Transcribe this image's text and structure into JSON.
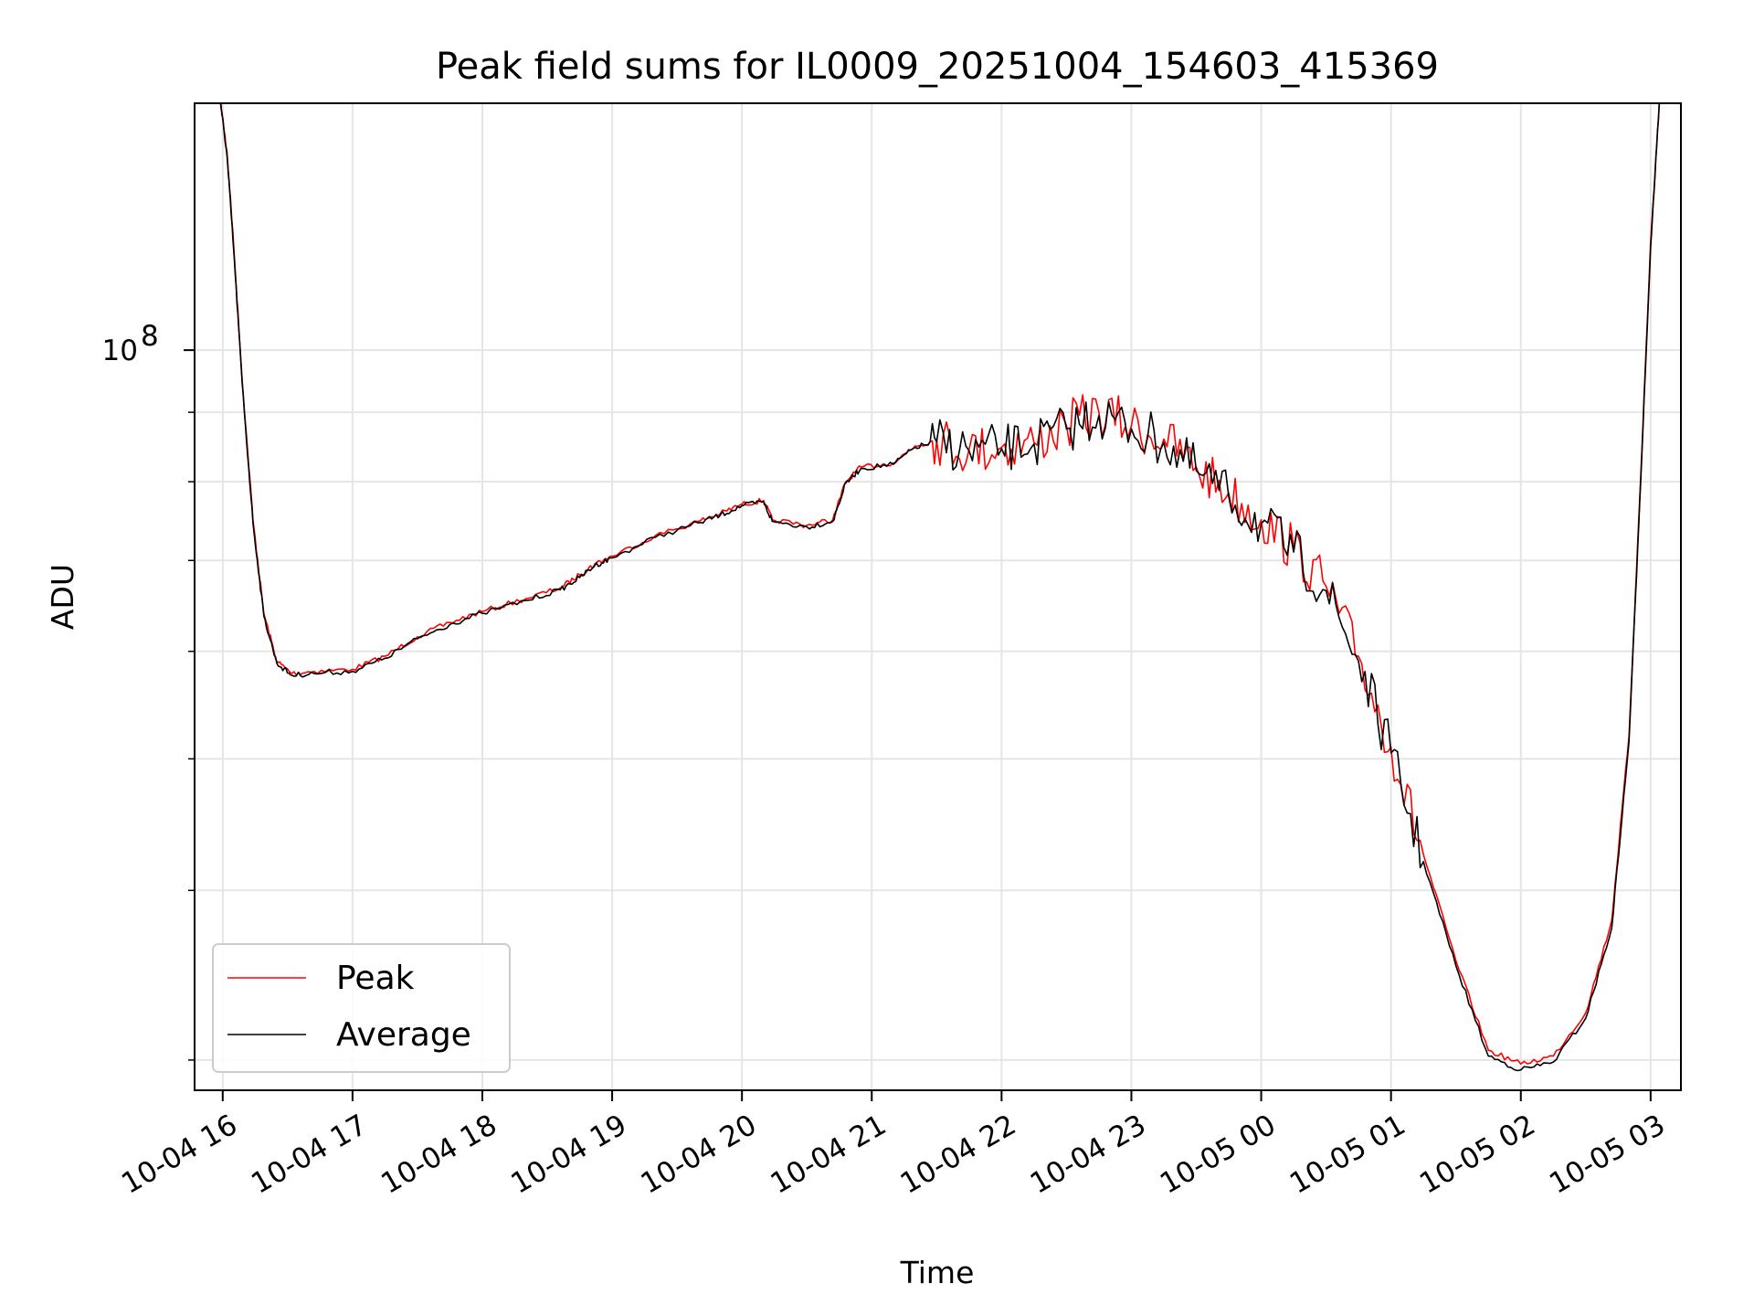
{
  "chart_data": {
    "type": "line",
    "title": "Peak field sums for IL0009_20251004_154603_415369",
    "xlabel": "Time",
    "ylabel": "ADU",
    "yscale": "log",
    "ylim": [
      28500000,
      152000000
    ],
    "xlim": [
      "2025-10-04 15:47",
      "2025-10-05 03:14"
    ],
    "grid": true,
    "legend_position": "lower-left",
    "x_ticks": [
      {
        "t": "2025-10-04 16:00",
        "label": "10-04 16"
      },
      {
        "t": "2025-10-04 17:00",
        "label": "10-04 17"
      },
      {
        "t": "2025-10-04 18:00",
        "label": "10-04 18"
      },
      {
        "t": "2025-10-04 19:00",
        "label": "10-04 19"
      },
      {
        "t": "2025-10-04 20:00",
        "label": "10-04 20"
      },
      {
        "t": "2025-10-04 21:00",
        "label": "10-04 21"
      },
      {
        "t": "2025-10-04 22:00",
        "label": "10-04 22"
      },
      {
        "t": "2025-10-04 23:00",
        "label": "10-04 23"
      },
      {
        "t": "2025-10-05 00:00",
        "label": "10-05 00"
      },
      {
        "t": "2025-10-05 01:00",
        "label": "10-05 01"
      },
      {
        "t": "2025-10-05 02:00",
        "label": "10-05 02"
      },
      {
        "t": "2025-10-05 03:00",
        "label": "10-05 03"
      }
    ],
    "y_major_ticks": [
      {
        "value": 100000000,
        "label": "10",
        "exponent": "8"
      }
    ],
    "y_minor_ticks": [
      30000000,
      40000000,
      50000000,
      60000000,
      70000000,
      80000000,
      90000000,
      200000000
    ],
    "series": [
      {
        "name": "Peak",
        "color": "#ff0000",
        "points": [
          [
            "2025-10-04 15:59",
            152000000
          ],
          [
            "2025-10-04 16:02",
            140000000
          ],
          [
            "2025-10-04 16:05",
            120000000
          ],
          [
            "2025-10-04 16:09",
            95000000
          ],
          [
            "2025-10-04 16:14",
            75000000
          ],
          [
            "2025-10-04 16:19",
            64000000
          ],
          [
            "2025-10-04 16:25",
            59000000
          ],
          [
            "2025-10-04 16:32",
            57800000
          ],
          [
            "2025-10-04 16:42",
            58000000
          ],
          [
            "2025-10-04 17:00",
            58200000
          ],
          [
            "2025-10-04 17:15",
            59500000
          ],
          [
            "2025-10-04 17:30",
            61500000
          ],
          [
            "2025-10-04 17:45",
            63000000
          ],
          [
            "2025-10-04 18:00",
            64200000
          ],
          [
            "2025-10-04 18:20",
            65600000
          ],
          [
            "2025-10-04 18:36",
            66800000
          ],
          [
            "2025-10-04 18:45",
            68300000
          ],
          [
            "2025-10-04 18:52",
            69600000
          ],
          [
            "2025-10-04 19:00",
            70500000
          ],
          [
            "2025-10-04 19:20",
            73000000
          ],
          [
            "2025-10-04 19:40",
            74800000
          ],
          [
            "2025-10-04 19:50",
            75800000
          ],
          [
            "2025-10-04 20:00",
            77000000
          ],
          [
            "2025-10-04 20:10",
            77500000
          ],
          [
            "2025-10-04 20:14",
            75000000
          ],
          [
            "2025-10-04 20:30",
            74300000
          ],
          [
            "2025-10-04 20:42",
            75000000
          ],
          [
            "2025-10-04 20:48",
            80000000
          ],
          [
            "2025-10-04 20:55",
            82000000
          ],
          [
            "2025-10-04 21:10",
            82600000
          ],
          [
            "2025-10-04 21:20",
            85000000
          ],
          [
            "2025-10-04 21:30",
            85800000
          ],
          [
            "2025-10-04 21:45",
            84500000
          ],
          [
            "2025-10-04 22:00",
            84800000
          ],
          [
            "2025-10-04 22:15",
            85500000
          ],
          [
            "2025-10-04 22:30",
            88000000
          ],
          [
            "2025-10-04 22:45",
            90000000
          ],
          [
            "2025-10-04 23:00",
            88000000
          ],
          [
            "2025-10-04 23:15",
            86000000
          ],
          [
            "2025-10-04 23:30",
            82000000
          ],
          [
            "2025-10-04 23:45",
            78500000
          ],
          [
            "2025-10-05 00:00",
            75000000
          ],
          [
            "2025-10-05 00:15",
            71500000
          ],
          [
            "2025-10-05 00:30",
            67000000
          ],
          [
            "2025-10-05 00:45",
            59500000
          ],
          [
            "2025-10-05 01:00",
            51000000
          ],
          [
            "2025-10-05 01:15",
            42500000
          ],
          [
            "2025-10-05 01:30",
            35500000
          ],
          [
            "2025-10-05 01:45",
            30500000
          ],
          [
            "2025-10-05 02:00",
            29800000
          ],
          [
            "2025-10-05 02:15",
            30200000
          ],
          [
            "2025-10-05 02:30",
            32500000
          ],
          [
            "2025-10-05 02:42",
            38000000
          ],
          [
            "2025-10-05 02:50",
            52000000
          ],
          [
            "2025-10-05 02:55",
            78000000
          ],
          [
            "2025-10-05 03:00",
            120000000
          ],
          [
            "2025-10-05 03:04",
            152000000
          ]
        ]
      },
      {
        "name": "Average",
        "color": "#000000",
        "points": [
          [
            "2025-10-04 15:59",
            152000000
          ],
          [
            "2025-10-04 16:02",
            139000000
          ],
          [
            "2025-10-04 16:05",
            119000000
          ],
          [
            "2025-10-04 16:09",
            94500000
          ],
          [
            "2025-10-04 16:14",
            74600000
          ],
          [
            "2025-10-04 16:19",
            63700000
          ],
          [
            "2025-10-04 16:25",
            58800000
          ],
          [
            "2025-10-04 16:32",
            57600000
          ],
          [
            "2025-10-04 16:42",
            57800000
          ],
          [
            "2025-10-04 17:00",
            58000000
          ],
          [
            "2025-10-04 17:15",
            59300000
          ],
          [
            "2025-10-04 17:30",
            61300000
          ],
          [
            "2025-10-04 17:45",
            62800000
          ],
          [
            "2025-10-04 18:00",
            64000000
          ],
          [
            "2025-10-04 18:20",
            65400000
          ],
          [
            "2025-10-04 18:36",
            66600000
          ],
          [
            "2025-10-04 18:45",
            68000000
          ],
          [
            "2025-10-04 18:52",
            69400000
          ],
          [
            "2025-10-04 19:00",
            70300000
          ],
          [
            "2025-10-04 19:20",
            72800000
          ],
          [
            "2025-10-04 19:40",
            74600000
          ],
          [
            "2025-10-04 19:50",
            75600000
          ],
          [
            "2025-10-04 20:00",
            76800000
          ],
          [
            "2025-10-04 20:10",
            77300000
          ],
          [
            "2025-10-04 20:14",
            74800000
          ],
          [
            "2025-10-04 20:30",
            74100000
          ],
          [
            "2025-10-04 20:42",
            74800000
          ],
          [
            "2025-10-04 20:48",
            79800000
          ],
          [
            "2025-10-04 20:55",
            81800000
          ],
          [
            "2025-10-04 21:10",
            82400000
          ],
          [
            "2025-10-04 21:20",
            84800000
          ],
          [
            "2025-10-04 21:30",
            85600000
          ],
          [
            "2025-10-04 21:45",
            84300000
          ],
          [
            "2025-10-04 22:00",
            84600000
          ],
          [
            "2025-10-04 22:15",
            85300000
          ],
          [
            "2025-10-04 22:30",
            87500000
          ],
          [
            "2025-10-04 22:45",
            89500000
          ],
          [
            "2025-10-04 23:00",
            87500000
          ],
          [
            "2025-10-04 23:15",
            85500000
          ],
          [
            "2025-10-04 23:30",
            81500000
          ],
          [
            "2025-10-04 23:45",
            78000000
          ],
          [
            "2025-10-05 00:00",
            74500000
          ],
          [
            "2025-10-05 00:15",
            71000000
          ],
          [
            "2025-10-05 00:30",
            66500000
          ],
          [
            "2025-10-05 00:45",
            59000000
          ],
          [
            "2025-10-05 01:00",
            50500000
          ],
          [
            "2025-10-05 01:15",
            42000000
          ],
          [
            "2025-10-05 01:30",
            35200000
          ],
          [
            "2025-10-05 01:45",
            30200000
          ],
          [
            "2025-10-05 02:00",
            29500000
          ],
          [
            "2025-10-05 02:15",
            29900000
          ],
          [
            "2025-10-05 02:30",
            32200000
          ],
          [
            "2025-10-05 02:42",
            37500000
          ],
          [
            "2025-10-05 02:50",
            51500000
          ],
          [
            "2025-10-05 02:55",
            77500000
          ],
          [
            "2025-10-05 03:00",
            119000000
          ],
          [
            "2025-10-05 03:04",
            152000000
          ]
        ]
      }
    ]
  }
}
